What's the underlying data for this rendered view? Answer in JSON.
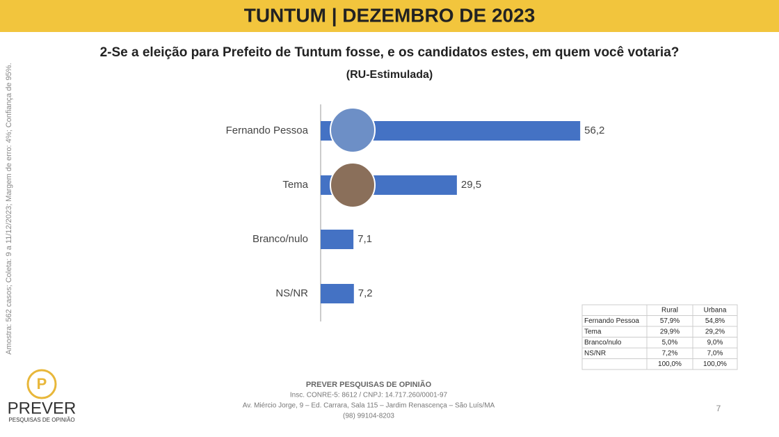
{
  "header": {
    "title": "TUNTUM | DEZEMBRO DE 2023"
  },
  "side_note": "Amostra: 562 casos; Coleta: 9 a 11/12/2023; Margem de erro: 4%; Confiança de 95%.",
  "chart_data": {
    "type": "bar",
    "orientation": "horizontal",
    "title": "2-Se a eleição para Prefeito de Tuntum fosse, e os candidatos estes, em quem você votaria?",
    "subtitle": "(RU-Estimulada)",
    "categories": [
      "Fernando Pessoa",
      "Tema",
      "Branco/nulo",
      "NS/NR"
    ],
    "values": [
      56.2,
      29.5,
      7.1,
      7.2
    ],
    "value_labels": [
      "56,2",
      "29,5",
      "7,1",
      "7,2"
    ],
    "color": "#4472c4"
  },
  "table": {
    "columns": [
      "Rural",
      "Urbana"
    ],
    "rows": [
      [
        "Fernando Pessoa",
        "57,9%",
        "54,8%"
      ],
      [
        "Tema",
        "29,9%",
        "29,2%"
      ],
      [
        "Branco/nulo",
        "5,0%",
        "9,0%"
      ],
      [
        "NS/NR",
        "7,2%",
        "7,0%"
      ]
    ],
    "total": [
      "100,0%",
      "100,0%"
    ]
  },
  "footer": {
    "company": "PREVER PESQUISAS DE OPINIÃO",
    "registration": "Insc. CONRE-5: 8612 / CNPJ: 14.717.260/0001-97",
    "address": "Av. Miércio Jorge, 9 – Ed. Carrara, Sala 115 – Jardim Renascença – São Luís/MA",
    "phone": "(98) 99104-8203"
  },
  "logo": {
    "name": "PREVER",
    "tagline": "PESQUISAS DE OPINIÃO"
  },
  "page_number": "7"
}
